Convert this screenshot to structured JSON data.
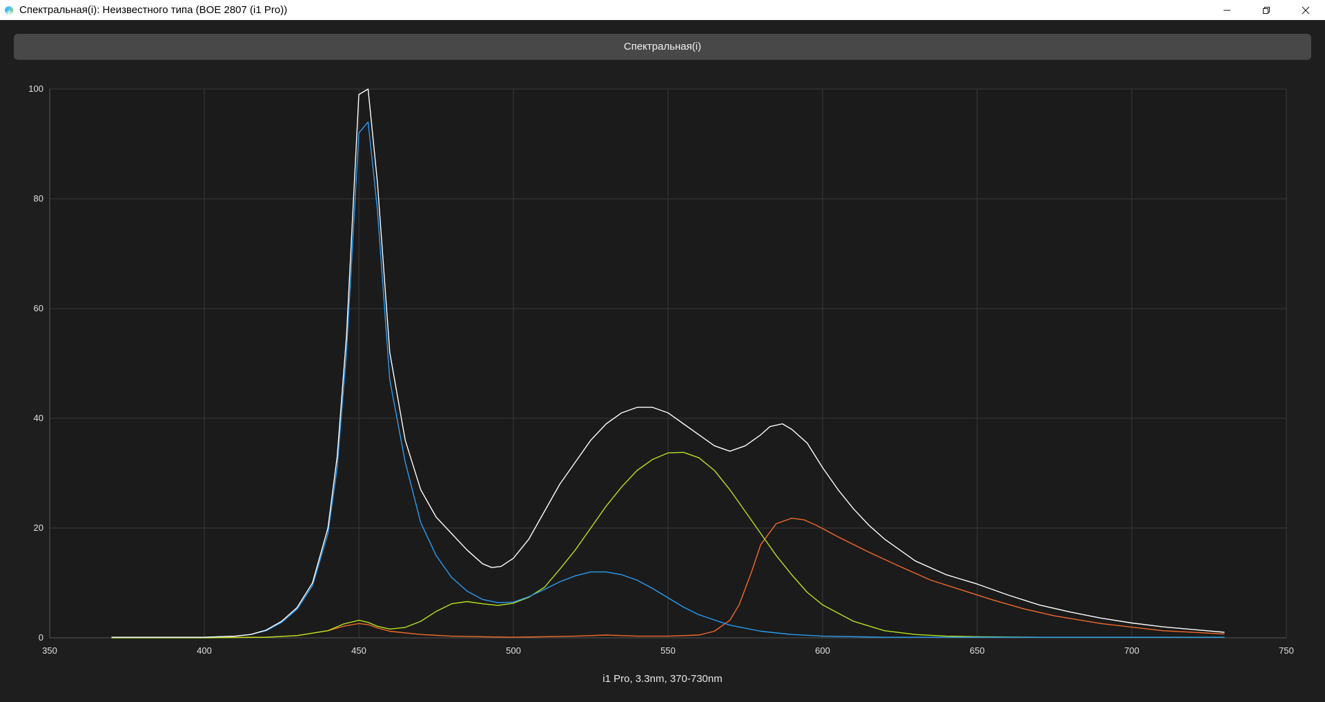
{
  "window": {
    "title": "Спектральная(i): Неизвестного типа (BOE 2807 (i1 Pro))",
    "controls": [
      "minimize",
      "restore",
      "close"
    ]
  },
  "tab": {
    "label": "Спектральная(i)"
  },
  "caption": "i1 Pro, 3.3nm, 370-730nm",
  "colors": {
    "background": "#1e1e1e",
    "total": "#ffffff",
    "blue": "#2a9df4",
    "green": "#b8e21e",
    "red": "#f26a2a"
  },
  "chart_data": {
    "type": "line",
    "xlim": [
      350,
      750
    ],
    "ylim": [
      0,
      100
    ],
    "xticks": [
      350,
      400,
      450,
      500,
      550,
      600,
      650,
      700,
      750
    ],
    "yticks": [
      0,
      20,
      40,
      60,
      80,
      100
    ],
    "grid": true,
    "series": [
      {
        "key": "total",
        "color": "#ffffff",
        "x": [
          370,
          400,
          410,
          415,
          420,
          425,
          430,
          435,
          440,
          443,
          446,
          450,
          453,
          456,
          460,
          465,
          470,
          475,
          480,
          485,
          490,
          493,
          496,
          500,
          505,
          510,
          515,
          520,
          525,
          530,
          535,
          540,
          545,
          550,
          555,
          560,
          565,
          570,
          575,
          580,
          583,
          587,
          590,
          595,
          600,
          605,
          610,
          615,
          620,
          630,
          640,
          650,
          660,
          670,
          680,
          690,
          700,
          710,
          720,
          730
        ],
        "y": [
          0.1,
          0.1,
          0.3,
          0.6,
          1.4,
          3.0,
          5.5,
          10,
          20,
          33,
          55,
          99,
          100,
          83,
          52,
          36,
          27,
          22,
          19,
          16,
          13.5,
          12.8,
          13,
          14.5,
          18,
          23,
          28,
          32,
          36,
          39,
          41,
          42,
          42,
          41,
          39,
          37,
          35,
          34,
          35,
          37,
          38.5,
          39,
          38,
          35.5,
          31,
          27,
          23.5,
          20.5,
          18,
          14,
          11.5,
          9.8,
          7.8,
          6,
          4.7,
          3.6,
          2.7,
          2,
          1.5,
          1
        ]
      },
      {
        "key": "blue",
        "color": "#2a9df4",
        "x": [
          370,
          400,
          410,
          415,
          420,
          425,
          430,
          435,
          440,
          443,
          446,
          450,
          453,
          456,
          460,
          465,
          470,
          475,
          480,
          485,
          490,
          495,
          500,
          505,
          510,
          515,
          520,
          525,
          530,
          535,
          540,
          545,
          550,
          555,
          560,
          570,
          580,
          590,
          600,
          620,
          650,
          700,
          730
        ],
        "y": [
          0.1,
          0.1,
          0.3,
          0.6,
          1.3,
          2.8,
          5.2,
          9.5,
          19,
          31,
          52,
          92,
          94,
          78,
          47,
          32,
          21,
          15,
          11,
          8.5,
          7,
          6.4,
          6.5,
          7.5,
          8.8,
          10.2,
          11.3,
          12,
          12,
          11.5,
          10.5,
          9,
          7.3,
          5.6,
          4.2,
          2.3,
          1.2,
          0.6,
          0.3,
          0.1,
          0.1,
          0.1,
          0.1
        ]
      },
      {
        "key": "green",
        "color": "#b8e21e",
        "x": [
          370,
          400,
          420,
          430,
          440,
          445,
          450,
          453,
          456,
          460,
          465,
          470,
          475,
          480,
          485,
          490,
          495,
          500,
          505,
          510,
          515,
          520,
          525,
          530,
          535,
          540,
          545,
          550,
          555,
          560,
          565,
          570,
          575,
          580,
          585,
          590,
          595,
          600,
          610,
          620,
          630,
          640,
          650,
          670,
          700,
          730
        ],
        "y": [
          0,
          0,
          0.1,
          0.4,
          1.3,
          2.5,
          3.2,
          2.8,
          2.1,
          1.6,
          1.9,
          3,
          4.8,
          6.2,
          6.6,
          6.2,
          5.9,
          6.3,
          7.4,
          9.2,
          12.5,
          16,
          20,
          24,
          27.5,
          30.5,
          32.5,
          33.7,
          33.8,
          32.8,
          30.5,
          27,
          23,
          19,
          15,
          11.5,
          8.3,
          6,
          3,
          1.3,
          0.6,
          0.3,
          0.2,
          0.1,
          0.1,
          0.1
        ]
      },
      {
        "key": "red",
        "color": "#f26a2a",
        "x": [
          370,
          420,
          430,
          440,
          445,
          450,
          453,
          456,
          460,
          470,
          480,
          490,
          500,
          510,
          520,
          530,
          540,
          550,
          560,
          565,
          570,
          573,
          577,
          580,
          585,
          590,
          594,
          598,
          605,
          615,
          625,
          635,
          645,
          655,
          665,
          675,
          690,
          710,
          730
        ],
        "y": [
          0.1,
          0.1,
          0.4,
          1.3,
          2.1,
          2.6,
          2.4,
          1.8,
          1.2,
          0.6,
          0.3,
          0.2,
          0.1,
          0.2,
          0.3,
          0.5,
          0.3,
          0.3,
          0.5,
          1.2,
          3.2,
          6,
          12,
          17,
          20.8,
          21.8,
          21.5,
          20.5,
          18.4,
          15.6,
          13,
          10.5,
          8.7,
          6.9,
          5.3,
          4,
          2.6,
          1.3,
          0.7
        ]
      }
    ]
  }
}
